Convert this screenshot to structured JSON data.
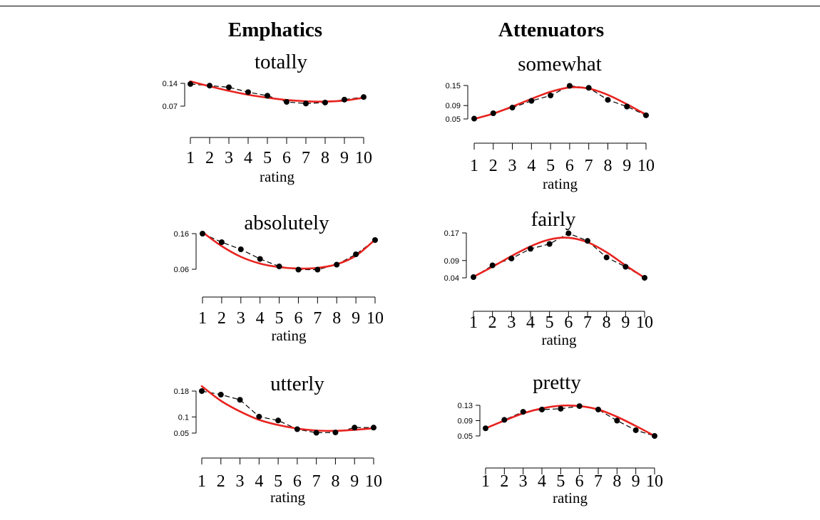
{
  "columns": {
    "left": "Emphatics",
    "right": "Attenuators"
  },
  "chart_data": [
    {
      "type": "line",
      "title": "totally",
      "xlabel": "rating",
      "x": [
        1,
        2,
        3,
        4,
        5,
        6,
        7,
        8,
        9,
        10
      ],
      "xticks": [
        "1",
        "2",
        "3",
        "4",
        "5",
        "6",
        "7",
        "8",
        "9",
        "10"
      ],
      "yticks": [
        0.14,
        0.07
      ],
      "ylim": [
        0.07,
        0.14
      ],
      "series": [
        {
          "values": [
            0.138,
            0.133,
            0.128,
            0.113,
            0.102,
            0.083,
            0.078,
            0.081,
            0.09,
            0.098
          ]
        },
        {
          "values": [
            0.146,
            0.131,
            0.117,
            0.105,
            0.096,
            0.089,
            0.085,
            0.084,
            0.087,
            0.096
          ]
        }
      ],
      "colors": {
        "observed": "#000000",
        "fit": "#e8231f"
      }
    },
    {
      "type": "line",
      "title": "somewhat",
      "xlabel": "rating",
      "x": [
        1,
        2,
        3,
        4,
        5,
        6,
        7,
        8,
        9,
        10
      ],
      "xticks": [
        "1",
        "2",
        "3",
        "4",
        "5",
        "6",
        "7",
        "8",
        "9",
        "10"
      ],
      "yticks": [
        0.15,
        0.09,
        0.05
      ],
      "ylim": [
        0.05,
        0.15
      ],
      "series": [
        {
          "values": [
            0.051,
            0.067,
            0.084,
            0.104,
            0.12,
            0.149,
            0.143,
            0.107,
            0.087,
            0.061
          ]
        },
        {
          "values": [
            0.05,
            0.066,
            0.087,
            0.11,
            0.131,
            0.144,
            0.141,
            0.122,
            0.094,
            0.063
          ]
        }
      ],
      "colors": {
        "observed": "#000000",
        "fit": "#e8231f"
      }
    },
    {
      "type": "line",
      "title": "absolutely",
      "xlabel": "rating",
      "x": [
        1,
        2,
        3,
        4,
        5,
        6,
        7,
        8,
        9,
        10
      ],
      "xticks": [
        "1",
        "2",
        "3",
        "4",
        "5",
        "6",
        "7",
        "8",
        "9",
        "10"
      ],
      "yticks": [
        0.16,
        0.06
      ],
      "ylim": [
        0.06,
        0.16
      ],
      "series": [
        {
          "values": [
            0.16,
            0.136,
            0.116,
            0.089,
            0.068,
            0.059,
            0.059,
            0.073,
            0.102,
            0.142
          ]
        },
        {
          "values": [
            0.164,
            0.125,
            0.095,
            0.076,
            0.066,
            0.062,
            0.064,
            0.074,
            0.098,
            0.143
          ]
        }
      ],
      "colors": {
        "observed": "#000000",
        "fit": "#e8231f"
      }
    },
    {
      "type": "line",
      "title": "fairly",
      "xlabel": "rating",
      "x": [
        1,
        2,
        3,
        4,
        5,
        6,
        7,
        8,
        9,
        10
      ],
      "xticks": [
        "1",
        "2",
        "3",
        "4",
        "5",
        "6",
        "7",
        "8",
        "9",
        "10"
      ],
      "yticks": [
        0.17,
        0.09,
        0.04
      ],
      "ylim": [
        0.04,
        0.17
      ],
      "series": [
        {
          "values": [
            0.042,
            0.076,
            0.096,
            0.124,
            0.138,
            0.169,
            0.147,
            0.099,
            0.072,
            0.04
          ]
        },
        {
          "values": [
            0.043,
            0.072,
            0.103,
            0.131,
            0.151,
            0.156,
            0.143,
            0.114,
            0.076,
            0.04
          ]
        }
      ],
      "colors": {
        "observed": "#000000",
        "fit": "#e8231f"
      }
    },
    {
      "type": "line",
      "title": "utterly",
      "xlabel": "rating",
      "x": [
        1,
        2,
        3,
        4,
        5,
        6,
        7,
        8,
        9,
        10
      ],
      "xticks": [
        "1",
        "2",
        "3",
        "4",
        "5",
        "6",
        "7",
        "8",
        "9",
        "10"
      ],
      "yticks": [
        0.18,
        0.1,
        0.05
      ],
      "ylim": [
        0.05,
        0.18
      ],
      "series": [
        {
          "values": [
            0.18,
            0.169,
            0.153,
            0.101,
            0.089,
            0.062,
            0.051,
            0.052,
            0.067,
            0.067
          ]
        },
        {
          "values": [
            0.195,
            0.15,
            0.117,
            0.091,
            0.075,
            0.064,
            0.058,
            0.057,
            0.06,
            0.065
          ]
        }
      ],
      "colors": {
        "observed": "#000000",
        "fit": "#e8231f"
      }
    },
    {
      "type": "line",
      "title": "pretty",
      "xlabel": "rating",
      "x": [
        1,
        2,
        3,
        4,
        5,
        6,
        7,
        8,
        9,
        10
      ],
      "xticks": [
        "1",
        "2",
        "3",
        "4",
        "5",
        "6",
        "7",
        "8",
        "9",
        "10"
      ],
      "yticks": [
        0.13,
        0.09,
        0.05
      ],
      "ylim": [
        0.05,
        0.13
      ],
      "series": [
        {
          "values": [
            0.07,
            0.092,
            0.113,
            0.119,
            0.121,
            0.128,
            0.119,
            0.09,
            0.065,
            0.05
          ]
        },
        {
          "values": [
            0.07,
            0.09,
            0.109,
            0.122,
            0.129,
            0.128,
            0.119,
            0.1,
            0.076,
            0.05
          ]
        }
      ],
      "colors": {
        "observed": "#000000",
        "fit": "#e8231f"
      }
    }
  ]
}
